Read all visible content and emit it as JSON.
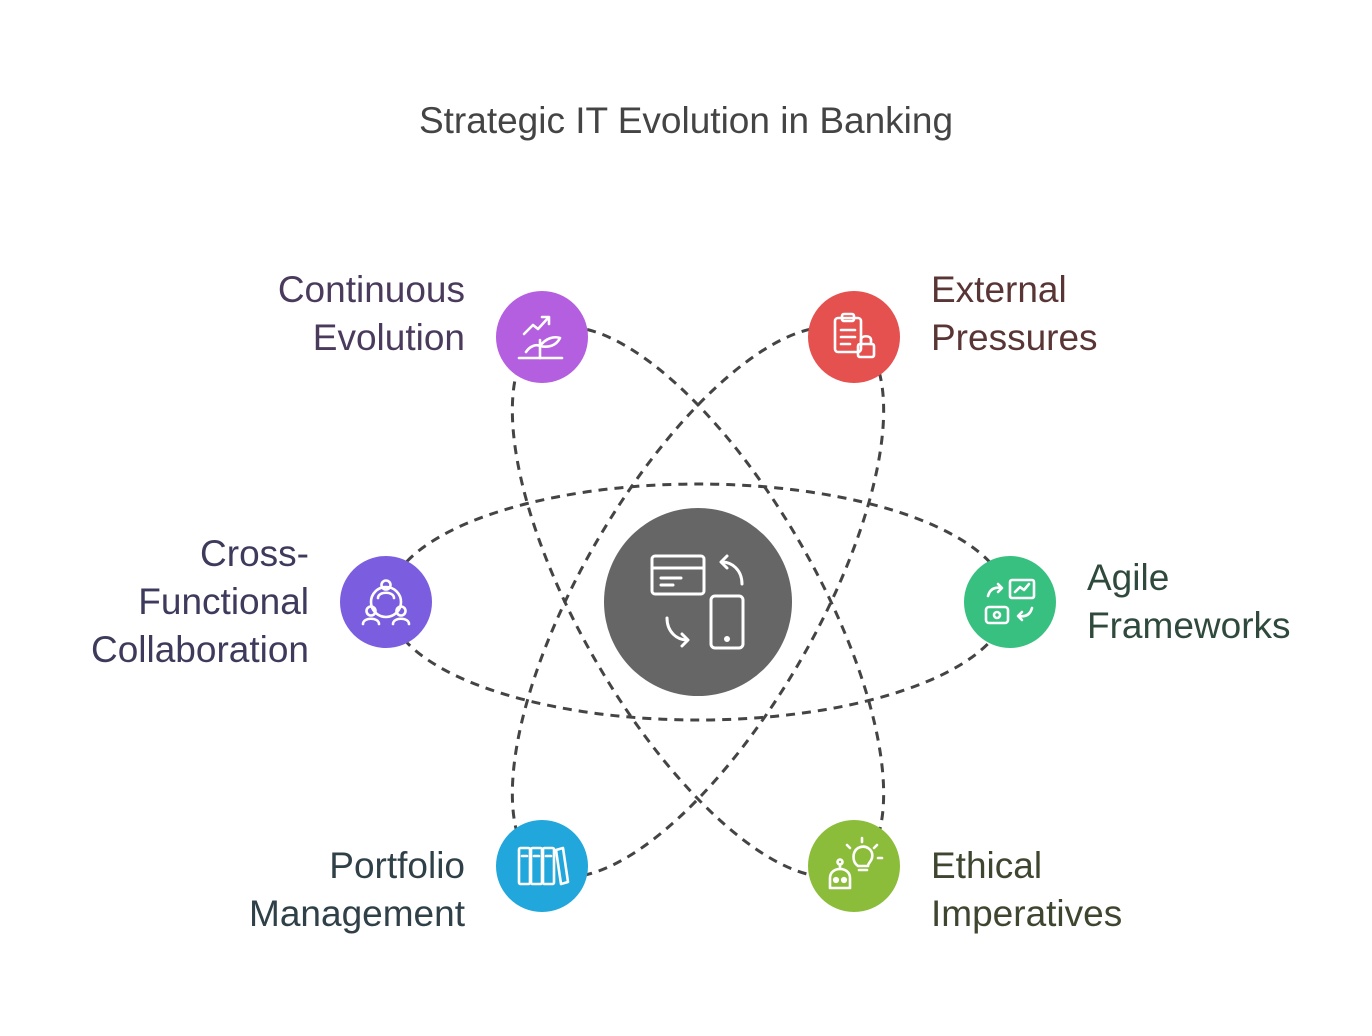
{
  "title": "Strategic IT Evolution in Banking",
  "center": {
    "icon": "digital-transformation-icon",
    "color": "#666666"
  },
  "nodes": [
    {
      "id": "continuous-evolution",
      "label": "Continuous\nEvolution",
      "icon": "growth-plant-icon",
      "color": "#b45ee0"
    },
    {
      "id": "external-pressures",
      "label": "External\nPressures",
      "icon": "clipboard-lock-icon",
      "color": "#e5514f"
    },
    {
      "id": "cross-functional-collaboration",
      "label": "Cross-\nFunctional\nCollaboration",
      "icon": "team-network-icon",
      "color": "#7b5ee0"
    },
    {
      "id": "agile-frameworks",
      "label": "Agile\nFrameworks",
      "icon": "agile-cycle-icon",
      "color": "#38c080"
    },
    {
      "id": "portfolio-management",
      "label": "Portfolio\nManagement",
      "icon": "binders-icon",
      "color": "#21a7dc"
    },
    {
      "id": "ethical-imperatives",
      "label": "Ethical\nImperatives",
      "icon": "robot-idea-icon",
      "color": "#8bbd3a"
    }
  ]
}
